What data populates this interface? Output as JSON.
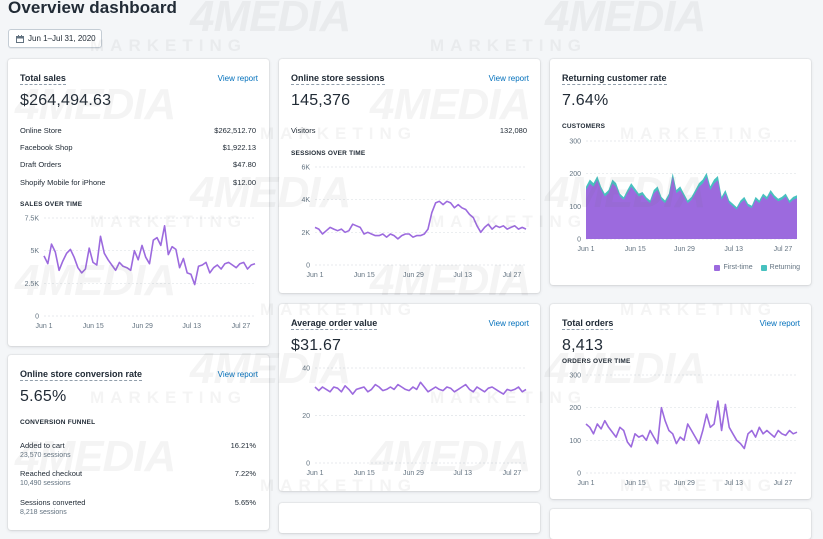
{
  "page_title": "Overview dashboard",
  "date_range": "Jun 1–Jul 31, 2020",
  "watermark": {
    "logo": "4MEDIA",
    "tagline": "MARKETING"
  },
  "view_report": "View report",
  "x_ticks": [
    "Jun 1",
    "Jun 15",
    "Jun 29",
    "Jul 13",
    "Jul 27"
  ],
  "colors": {
    "accent": "#9c6ade",
    "teal": "#47c1bf",
    "link": "#006fbb"
  },
  "total_sales": {
    "title": "Total sales",
    "value": "$264,494.63",
    "rows": [
      {
        "label": "Online Store",
        "value": "$262,512.70"
      },
      {
        "label": "Facebook Shop",
        "value": "$1,922.13"
      },
      {
        "label": "Draft Orders",
        "value": "$47.80"
      },
      {
        "label": "Shopify Mobile for iPhone",
        "value": "$12.00"
      }
    ],
    "chart_label": "SALES OVER TIME"
  },
  "sessions": {
    "title": "Online store sessions",
    "value": "145,376",
    "visitors_label": "Visitors",
    "visitors_value": "132,080",
    "chart_label": "SESSIONS OVER TIME"
  },
  "returning": {
    "title": "Returning customer rate",
    "value": "7.64%",
    "chart_label": "CUSTOMERS",
    "legend_first": "First-time",
    "legend_returning": "Returning"
  },
  "aov": {
    "title": "Average order value",
    "value": "$31.67"
  },
  "orders": {
    "title": "Total orders",
    "value": "8,413",
    "chart_label": "ORDERS OVER TIME"
  },
  "conversion": {
    "title": "Online store conversion rate",
    "value": "5.65%",
    "funnel_label": "CONVERSION FUNNEL",
    "rows": [
      {
        "label": "Added to cart",
        "sub": "23,570 sessions",
        "value": "16.21%"
      },
      {
        "label": "Reached checkout",
        "sub": "10,490 sessions",
        "value": "7.22%"
      },
      {
        "label": "Sessions converted",
        "sub": "8,218 sessions",
        "value": "5.65%"
      }
    ]
  },
  "chart_data": [
    {
      "type": "line",
      "name": "sales",
      "yticks": [
        "7.5K",
        "5K",
        "2.5K",
        "0"
      ],
      "ylim": [
        0,
        7500
      ],
      "values": [
        4600,
        4000,
        5500,
        4900,
        3500,
        4200,
        4800,
        5100,
        4500,
        3700,
        3300,
        3600,
        5200,
        4100,
        3900,
        6100,
        4800,
        4300,
        3900,
        3500,
        4100,
        3800,
        3700,
        3500,
        5000,
        4300,
        5400,
        4500,
        4000,
        5800,
        6000,
        5400,
        6900,
        4700,
        5300,
        5100,
        3700,
        4400,
        3300,
        3200,
        2400,
        3800,
        3900,
        4100,
        3300,
        3700,
        3900,
        3600,
        4000,
        4100,
        3900,
        3700,
        4000,
        4100,
        3600,
        3900,
        4000
      ]
    },
    {
      "type": "line",
      "name": "sessions",
      "yticks": [
        "6K",
        "4K",
        "2K",
        "0"
      ],
      "ylim": [
        0,
        6000
      ],
      "values": [
        2300,
        2200,
        1900,
        2100,
        2300,
        2200,
        2100,
        2200,
        2000,
        2100,
        2500,
        2400,
        2300,
        1900,
        2000,
        1900,
        1800,
        1800,
        1900,
        1700,
        1900,
        1800,
        1600,
        1800,
        1900,
        1900,
        1700,
        1800,
        1800,
        1900,
        2200,
        3200,
        3800,
        3900,
        3700,
        3900,
        3800,
        3500,
        3700,
        3500,
        3400,
        3100,
        2900,
        2400,
        2000,
        2300,
        2500,
        2200,
        2400,
        2300,
        2400,
        2200,
        2300,
        2400,
        2200,
        2300,
        2200
      ]
    },
    {
      "type": "area",
      "name": "customers",
      "yticks": [
        "300",
        "200",
        "100",
        "0"
      ],
      "ylim": [
        0,
        300
      ],
      "series": [
        {
          "name": "First-time",
          "values": [
            150,
            170,
            160,
            180,
            150,
            130,
            140,
            170,
            160,
            130,
            120,
            140,
            160,
            145,
            130,
            135,
            120,
            110,
            140,
            150,
            120,
            110,
            130,
            190,
            140,
            150,
            130,
            110,
            120,
            140,
            160,
            170,
            190,
            150,
            170,
            180,
            120,
            140,
            110,
            100,
            90,
            110,
            120,
            100,
            95,
            120,
            110,
            130,
            120,
            140,
            125,
            115,
            120,
            130,
            110,
            120,
            125
          ]
        },
        {
          "name": "Returning",
          "values": [
            10,
            12,
            11,
            13,
            10,
            9,
            10,
            12,
            11,
            9,
            8,
            10,
            11,
            10,
            9,
            9,
            8,
            8,
            10,
            11,
            9,
            8,
            9,
            12,
            10,
            11,
            9,
            8,
            9,
            10,
            11,
            12,
            13,
            11,
            12,
            13,
            9,
            10,
            8,
            8,
            7,
            8,
            9,
            8,
            7,
            9,
            8,
            9,
            9,
            10,
            9,
            8,
            9,
            9,
            8,
            9,
            9
          ]
        }
      ]
    },
    {
      "type": "line",
      "name": "aov",
      "yticks": [
        "40",
        "20",
        "0"
      ],
      "ylim": [
        0,
        40
      ],
      "values": [
        32,
        30.5,
        32,
        31,
        30,
        32,
        31.5,
        30,
        32.5,
        31,
        29,
        31,
        31.5,
        32,
        30,
        31,
        33,
        32,
        30.5,
        31,
        32,
        31,
        33,
        32,
        31,
        30.5,
        32,
        31,
        34,
        32,
        30,
        31,
        32,
        31,
        30.5,
        32,
        31.5,
        30,
        31,
        32,
        33,
        31,
        30,
        32,
        31,
        30,
        31.5,
        32,
        31,
        30,
        29,
        31,
        30.5,
        31,
        32,
        30,
        31
      ]
    },
    {
      "type": "line",
      "name": "orders",
      "yticks": [
        "300",
        "200",
        "100",
        "0"
      ],
      "ylim": [
        0,
        300
      ],
      "values": [
        150,
        140,
        120,
        150,
        135,
        160,
        140,
        125,
        110,
        140,
        130,
        95,
        80,
        120,
        110,
        115,
        100,
        130,
        110,
        90,
        200,
        160,
        130,
        120,
        90,
        110,
        100,
        150,
        130,
        110,
        90,
        130,
        180,
        140,
        150,
        220,
        130,
        210,
        140,
        120,
        100,
        90,
        75,
        120,
        130,
        110,
        140,
        120,
        130,
        120,
        110,
        130,
        120,
        115,
        130,
        120,
        125
      ]
    }
  ]
}
